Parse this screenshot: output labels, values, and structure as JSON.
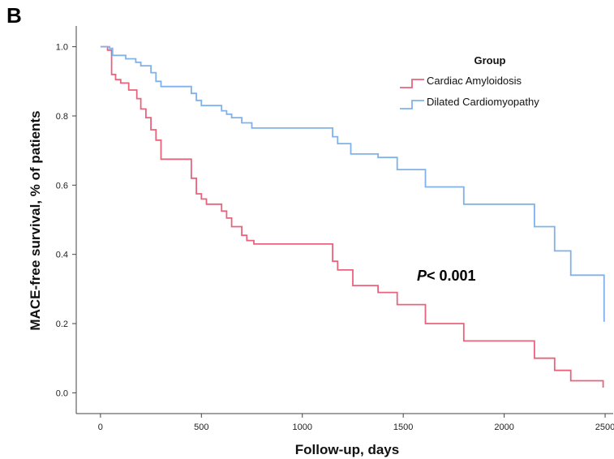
{
  "panel_label": "B",
  "chart_data": {
    "type": "line",
    "step": true,
    "title": "",
    "xlabel": "Follow-up, days",
    "ylabel": "MACE-free survival, % of patients",
    "xlim": [
      -120,
      2540
    ],
    "ylim": [
      -0.06,
      1.06
    ],
    "xticks": [
      0,
      500,
      1000,
      1500,
      2000,
      2500
    ],
    "xtick_labels": [
      "0",
      "500",
      "1000",
      "1500",
      "2000",
      "2500"
    ],
    "yticks": [
      0.0,
      0.2,
      0.4,
      0.6,
      0.8,
      1.0
    ],
    "ytick_labels": [
      "0.0",
      "0.2",
      "0.4",
      "0.6",
      "0.8",
      "1.0"
    ],
    "grid": false,
    "legend": {
      "title": "Group",
      "position": "top-right"
    },
    "annotation": {
      "italic": "P",
      "text": "< 0.001"
    },
    "series": [
      {
        "name": "Cardiac Amyloidosis",
        "color": "#e8647c",
        "points": [
          [
            0,
            1.0
          ],
          [
            35,
            0.99
          ],
          [
            55,
            0.92
          ],
          [
            75,
            0.905
          ],
          [
            100,
            0.895
          ],
          [
            140,
            0.875
          ],
          [
            180,
            0.85
          ],
          [
            200,
            0.82
          ],
          [
            225,
            0.795
          ],
          [
            250,
            0.76
          ],
          [
            275,
            0.73
          ],
          [
            300,
            0.675
          ],
          [
            450,
            0.62
          ],
          [
            475,
            0.575
          ],
          [
            500,
            0.56
          ],
          [
            525,
            0.545
          ],
          [
            600,
            0.525
          ],
          [
            625,
            0.505
          ],
          [
            650,
            0.48
          ],
          [
            700,
            0.455
          ],
          [
            725,
            0.44
          ],
          [
            760,
            0.43
          ],
          [
            1150,
            0.38
          ],
          [
            1175,
            0.355
          ],
          [
            1250,
            0.31
          ],
          [
            1375,
            0.29
          ],
          [
            1470,
            0.255
          ],
          [
            1610,
            0.2
          ],
          [
            1800,
            0.15
          ],
          [
            2150,
            0.1
          ],
          [
            2250,
            0.065
          ],
          [
            2330,
            0.035
          ],
          [
            2480,
            0.035
          ],
          [
            2490,
            0.015
          ]
        ]
      },
      {
        "name": "Dilated Cardiomyopathy",
        "color": "#7fb2ec",
        "points": [
          [
            0,
            1.0
          ],
          [
            45,
            0.995
          ],
          [
            60,
            0.975
          ],
          [
            125,
            0.965
          ],
          [
            175,
            0.955
          ],
          [
            200,
            0.945
          ],
          [
            250,
            0.925
          ],
          [
            275,
            0.9
          ],
          [
            300,
            0.885
          ],
          [
            450,
            0.865
          ],
          [
            475,
            0.845
          ],
          [
            500,
            0.83
          ],
          [
            600,
            0.815
          ],
          [
            625,
            0.805
          ],
          [
            650,
            0.795
          ],
          [
            700,
            0.78
          ],
          [
            750,
            0.765
          ],
          [
            1150,
            0.74
          ],
          [
            1175,
            0.72
          ],
          [
            1240,
            0.69
          ],
          [
            1375,
            0.68
          ],
          [
            1470,
            0.645
          ],
          [
            1610,
            0.595
          ],
          [
            1800,
            0.545
          ],
          [
            2150,
            0.48
          ],
          [
            2250,
            0.41
          ],
          [
            2330,
            0.34
          ],
          [
            2490,
            0.34
          ],
          [
            2495,
            0.205
          ]
        ]
      }
    ]
  }
}
